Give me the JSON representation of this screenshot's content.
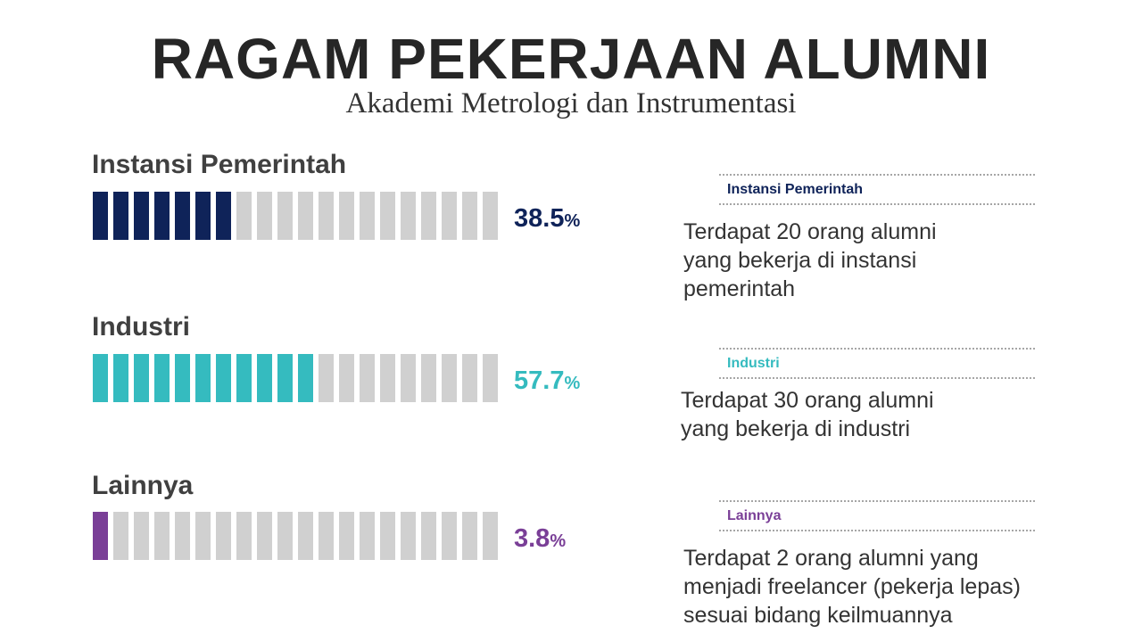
{
  "header": {
    "title": "RAGAM PEKERJAAN ALUMNI",
    "subtitle": "Akademi Metrologi dan Instrumentasi"
  },
  "colors": {
    "background": "#ffffff",
    "empty_segment": "#d0d0d0",
    "title_text": "#262626",
    "label_text": "#404040",
    "dotted_rule": "#a6a6a6"
  },
  "chart_data": {
    "type": "bar",
    "categories": [
      "Instansi Pemerintah",
      "Industri",
      "Lainnya"
    ],
    "values": [
      38.5,
      57.7,
      3.8
    ],
    "unit": "%",
    "segments_total": 20,
    "segments_filled": [
      7,
      11,
      1
    ],
    "series": [
      {
        "name": "Instansi Pemerintah",
        "value_label": "38.5",
        "unit": "%",
        "color": "#0f2359",
        "filled_segments": 7,
        "total_segments": 20
      },
      {
        "name": "Industri",
        "value_label": "57.7",
        "unit": "%",
        "color": "#35bbbf",
        "filled_segments": 11,
        "total_segments": 20
      },
      {
        "name": "Lainnya",
        "value_label": "3.8",
        "unit": "%",
        "color": "#7a3f97",
        "filled_segments": 1,
        "total_segments": 20
      }
    ]
  },
  "cards": [
    {
      "title": "Instansi Pemerintah",
      "color": "#0f2359",
      "lines": [
        "Terdapat 20 orang alumni",
        "yang bekerja di instansi",
        "pemerintah"
      ]
    },
    {
      "title": "Industri",
      "color": "#35bbbf",
      "lines": [
        "Terdapat 30 orang alumni",
        "yang bekerja di industri"
      ]
    },
    {
      "title": "Lainnya",
      "color": "#7a3f97",
      "lines": [
        "Terdapat 2 orang alumni yang",
        "menjadi freelancer (pekerja lepas)",
        "sesuai bidang keilmuannya"
      ]
    }
  ]
}
